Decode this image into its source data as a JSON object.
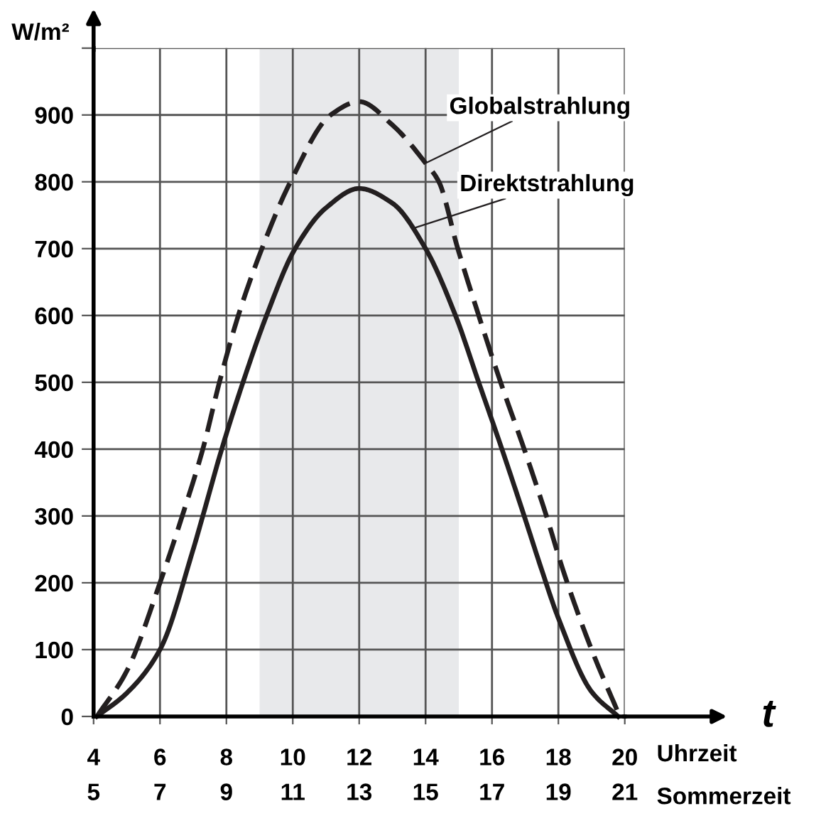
{
  "chart_data": {
    "type": "line",
    "xlabel": "t",
    "ylabel": "W/m²",
    "xlim": [
      4,
      20
    ],
    "xticks": [
      4,
      6,
      8,
      10,
      12,
      14,
      16,
      18,
      20
    ],
    "x2lim": [
      5,
      21
    ],
    "x2ticks": [
      5,
      7,
      9,
      11,
      13,
      15,
      17,
      19,
      21
    ],
    "ylim": [
      0,
      1000
    ],
    "yticks": [
      0,
      100,
      200,
      300,
      400,
      500,
      600,
      700,
      800,
      900,
      {
        "value": 1000,
        "label": null
      }
    ],
    "grid": true,
    "marker": "none",
    "series": [
      {
        "color": "#231f20",
        "line_style": "dashed",
        "x": [
          4.1,
          5,
          6,
          6.67,
          7.29,
          7.79,
          8.36,
          9.07,
          9.93,
          11.14,
          12,
          13,
          14,
          14.4,
          14.97,
          15.6,
          16.26,
          16.97,
          17.64,
          18.14,
          19,
          19.85
        ],
        "values": [
          0,
          68,
          200,
          300,
          400,
          500,
          600,
          700,
          800,
          900,
          920,
          885,
          828,
          800,
          700,
          600,
          500,
          400,
          300,
          219,
          100,
          0
        ]
      },
      {
        "color": "#231f20",
        "line_style": "solid",
        "x": [
          4.1,
          5,
          6,
          7,
          7.29,
          7.86,
          8.5,
          9.21,
          10.07,
          11,
          12,
          13,
          14,
          14.9,
          15.6,
          16.3,
          16.97,
          17.5,
          18,
          19,
          19.8
        ],
        "values": [
          0,
          35,
          100,
          250,
          300,
          400,
          500,
          600,
          700,
          761,
          790,
          768,
          700,
          600,
          500,
          400,
          300,
          219,
          147,
          37,
          0
        ]
      }
    ],
    "bands": [
      {
        "axis": "x",
        "from": 9,
        "to": 15,
        "color": "#e8e9eb"
      }
    ],
    "annotations": [
      {
        "text": "Globalstrahlung",
        "x": 14,
        "y": 828
      },
      {
        "text": "Direktstrahlung",
        "x": 13.6,
        "y": 730
      },
      "Uhrzeit",
      "Sommerzeit"
    ]
  }
}
